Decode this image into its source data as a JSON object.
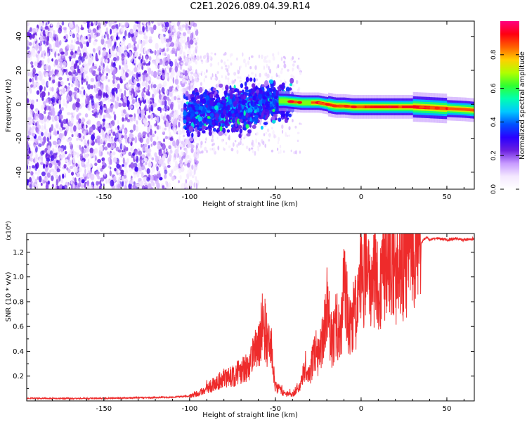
{
  "title": "C2E1.2026.089.04.39.R14",
  "chart_data": [
    {
      "type": "heatmap",
      "name": "spectrogram",
      "xlabel": "Height of straight line (km)",
      "ylabel": "Frequency (Hz)",
      "xlim": [
        -195,
        66
      ],
      "ylim": [
        -50,
        49
      ],
      "xticks": [
        -150,
        -100,
        -50,
        0,
        50
      ],
      "xtick_labels": [
        "-150",
        "-100",
        "-50",
        "0",
        "50"
      ],
      "yticks": [
        -40,
        -20,
        0,
        20,
        40
      ],
      "ytick_labels": [
        "-40",
        "-20",
        "0",
        "20",
        "40"
      ],
      "colorbar": {
        "label": "Normalized spectral amplitude",
        "range": [
          0,
          1
        ],
        "ticks": [
          0.0,
          0.2,
          0.4,
          0.6,
          0.8
        ],
        "tick_labels": [
          "0.0",
          "0.2",
          "0.4",
          "0.6",
          "0.8"
        ],
        "colormap": [
          "#ffffff",
          "#f4e8ff",
          "#c79aff",
          "#6a1fe0",
          "#2a00ff",
          "#0050ff",
          "#00c8ff",
          "#00ffb0",
          "#30ff30",
          "#b0ff00",
          "#ffd000",
          "#ff6000",
          "#ff0010",
          "#ff0080"
        ]
      },
      "ridge": {
        "x": [
          -100,
          -90,
          -80,
          -70,
          -60,
          -50,
          -45,
          -40,
          -35,
          -30,
          -25,
          -20,
          -15,
          -10,
          -5,
          0,
          10,
          20,
          30,
          40,
          50,
          60,
          66
        ],
        "y": [
          -6,
          -4,
          -3,
          -2,
          -1,
          2,
          2,
          1.5,
          1,
          1,
          1,
          0,
          -1,
          -1,
          -1.5,
          -1.5,
          -1.5,
          -1.5,
          -1.5,
          -2,
          -2.5,
          -3,
          -3.5
        ]
      }
    },
    {
      "type": "line",
      "name": "snr",
      "xlabel": "Height of straight line (km)",
      "ylabel": "SNR (10 * v/v)",
      "y_multiplier": "(x10⁴)",
      "xlim": [
        -195,
        66
      ],
      "ylim": [
        0,
        1.35
      ],
      "xticks": [
        -150,
        -100,
        -50,
        0,
        50
      ],
      "xtick_labels": [
        "-150",
        "-100",
        "-50",
        "0",
        "50"
      ],
      "yticks": [
        0.2,
        0.4,
        0.6,
        0.8,
        1.0,
        1.2
      ],
      "ytick_labels": [
        "0.2",
        "0.4",
        "0.6",
        "0.8",
        "1.0",
        "1.2"
      ],
      "color": "#ee2b2b",
      "series": [
        {
          "name": "SNR",
          "x": [
            -195,
            -150,
            -110,
            -100,
            -95,
            -90,
            -85,
            -80,
            -75,
            -70,
            -65,
            -60,
            -57,
            -55,
            -52,
            -50,
            -45,
            -40,
            -35,
            -32,
            -30,
            -27,
            -25,
            -22,
            -20,
            -17,
            -15,
            -12,
            -10,
            -7,
            -5,
            -2,
            0,
            3,
            5,
            8,
            10,
            13,
            15,
            18,
            20,
            23,
            25,
            28,
            30,
            33,
            35,
            38,
            40,
            45,
            50,
            55,
            60,
            66
          ],
          "y": [
            0.02,
            0.02,
            0.03,
            0.04,
            0.06,
            0.1,
            0.14,
            0.18,
            0.2,
            0.24,
            0.3,
            0.45,
            0.65,
            0.5,
            0.4,
            0.12,
            0.06,
            0.05,
            0.15,
            0.3,
            0.2,
            0.42,
            0.35,
            0.5,
            0.8,
            0.45,
            0.62,
            0.55,
            0.95,
            0.6,
            0.7,
            0.75,
            0.95,
            1.05,
            0.9,
            1.1,
            0.85,
            1.2,
            1.0,
            1.12,
            1.05,
            1.2,
            1.15,
            1.25,
            1.22,
            1.3,
            1.28,
            1.32,
            1.3,
            1.31,
            1.3,
            1.31,
            1.3,
            1.31
          ]
        }
      ]
    }
  ]
}
